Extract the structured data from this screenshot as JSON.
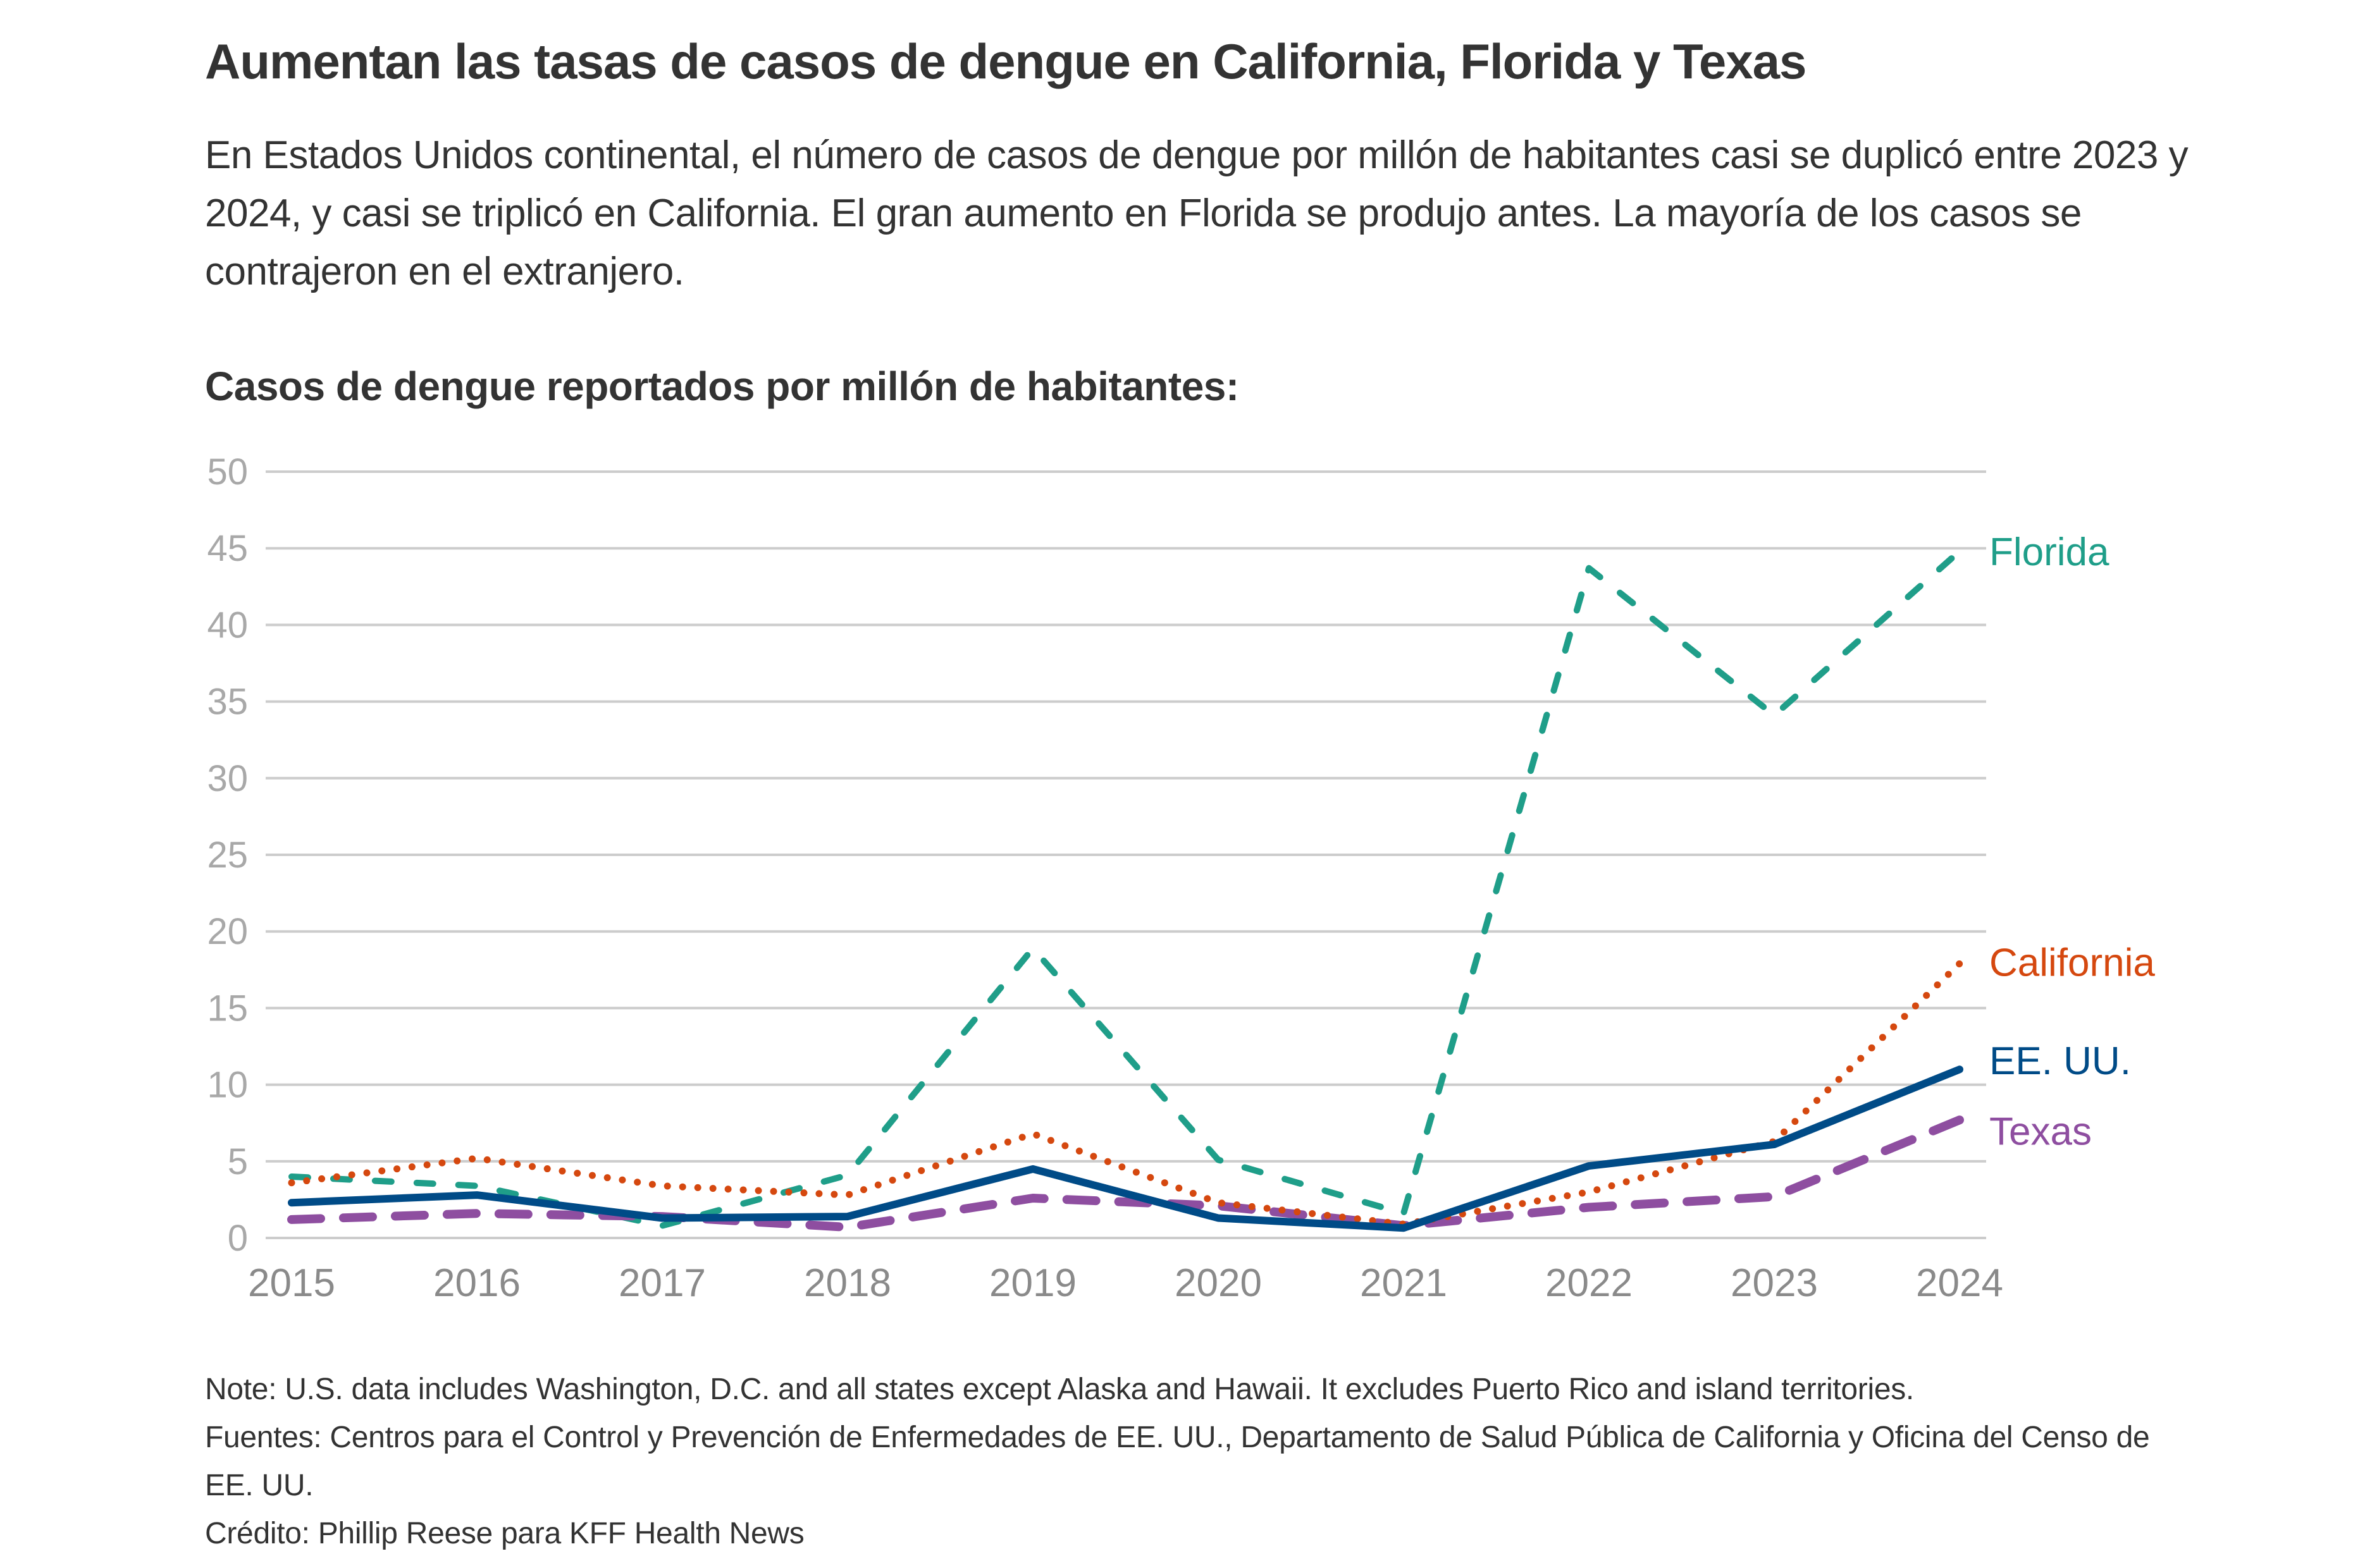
{
  "title": "Aumentan las tasas de casos de dengue en California, Florida y Texas",
  "subtitle": "En Estados Unidos continental, el número de casos de dengue por millón de habitantes casi se duplicó entre 2023 y 2024, y casi se triplicó en California. El gran aumento en Florida se produjo antes. La mayoría de los casos se contrajeron en el extranjero.",
  "chart_heading": "Casos de dengue reportados por millón de habitantes:",
  "footnotes": {
    "note": "Note: U.S. data includes Washington, D.C. and all states except Alaska and Hawaii. It excludes Puerto Rico and island territories.",
    "sources": "Fuentes: Centros para el Control y Prevención de Enfermedades de EE. UU., Departamento de Salud Pública de California y Oficina del Censo de EE. UU.",
    "credit": "Crédito: Phillip Reese para KFF Health News"
  },
  "chart_data": {
    "type": "line",
    "title": "Casos de dengue reportados por millón de habitantes:",
    "xlabel": "",
    "ylabel": "",
    "x": [
      "2015",
      "2016",
      "2017",
      "2018",
      "2019",
      "2020",
      "2021",
      "2022",
      "2023",
      "2024"
    ],
    "ylim": [
      0,
      50
    ],
    "yticks": [
      0,
      5,
      10,
      15,
      20,
      25,
      30,
      35,
      40,
      45,
      50
    ],
    "grid": true,
    "legend": "direct labels at line ends (right)",
    "series": [
      {
        "name": "Florida",
        "color": "#1f9e89",
        "dash": "dashed",
        "values": [
          4.0,
          3.4,
          0.8,
          4.1,
          18.9,
          5.1,
          1.6,
          43.7,
          34.1,
          44.8
        ]
      },
      {
        "name": "California",
        "color": "#d5480f",
        "dash": "dotted",
        "values": [
          3.6,
          5.2,
          3.4,
          2.8,
          6.8,
          2.3,
          0.9,
          3.0,
          6.3,
          17.9
        ]
      },
      {
        "name": "EE. UU.",
        "color": "#004b87",
        "dash": "solid",
        "values": [
          2.3,
          2.8,
          1.3,
          1.4,
          4.5,
          1.3,
          0.65,
          4.7,
          6.1,
          11.0
        ]
      },
      {
        "name": "Texas",
        "color": "#8e4ea0",
        "dash": "longdash",
        "values": [
          1.2,
          1.6,
          1.4,
          0.7,
          2.6,
          2.1,
          0.8,
          2.0,
          2.7,
          7.7
        ]
      }
    ]
  }
}
